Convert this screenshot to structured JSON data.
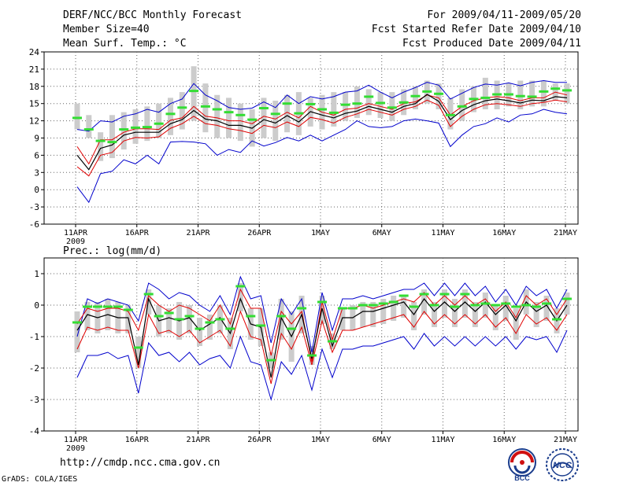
{
  "header": {
    "line1_left": "DERF/NCC/BCC Monthly Forecast",
    "line2_left": "Member Size=40",
    "line3_left": "Mean Surf. Temp.: °C",
    "line1_right": "For 2009/04/11-2009/05/20",
    "line2_right": "Fcst Started Refer Date 2009/04/10",
    "line3_right": "Fcst Produced Date 2009/04/11"
  },
  "footer": {
    "url": "http://cmdp.ncc.cma.gov.cn",
    "grads": "GrADS: COLA/IGES",
    "logo_bcc": "BCC",
    "logo_ncc": "NCC"
  },
  "colors": {
    "mean": "#000000",
    "spread": "#e00000",
    "extreme": "#0000cc",
    "box": "#cccccc",
    "climate": "#33dd33",
    "grid": "#666666"
  },
  "chart_data": [
    {
      "type": "line",
      "title": "Mean Surf. Temp.: °C",
      "ylabel": "",
      "ylim": [
        -6,
        24
      ],
      "yticks": [
        -6,
        -3,
        0,
        3,
        6,
        9,
        12,
        15,
        18,
        21,
        24
      ],
      "ytick_labels": [
        "-6",
        "-3",
        "0",
        "3",
        "6",
        "9",
        "12",
        "15",
        "18",
        "21",
        "24"
      ],
      "xtick_labels": [
        "11APR",
        "16APR",
        "21APR",
        "26APR",
        "1MAY",
        "6MAY",
        "11MAY",
        "16MAY",
        "21MAY"
      ],
      "xtick_sub": "2009",
      "series": [
        {
          "name": "max",
          "values": [
            10.5,
            10.2,
            12,
            11.8,
            12.8,
            13.2,
            14,
            13.5,
            15,
            15.8,
            18.5,
            16.5,
            15.5,
            14.3,
            14,
            14.2,
            15.3,
            14.3,
            16.5,
            15,
            16.2,
            15.8,
            16.2,
            17,
            17.2,
            18.2,
            17,
            16,
            17,
            17.8,
            18.7,
            18.2,
            15.8,
            16.8,
            17.8,
            18.4,
            18.2,
            18.6,
            18.1,
            18.7,
            19,
            18.7,
            18.7
          ]
        },
        {
          "name": "upper",
          "values": [
            7.5,
            4.5,
            8.7,
            8.7,
            10,
            10.6,
            10.6,
            10.5,
            12.1,
            12.5,
            14.5,
            12.8,
            12.5,
            12,
            12,
            11.5,
            12.8,
            12.3,
            13.5,
            12.5,
            14.5,
            13.5,
            13,
            14,
            14.2,
            15,
            14.5,
            14,
            15,
            15.3,
            16.5,
            16,
            13,
            14.5,
            15.5,
            16,
            16.2,
            16,
            15.5,
            16,
            16,
            17,
            16.5
          ]
        },
        {
          "name": "mean",
          "values": [
            6,
            3.5,
            7.2,
            7.8,
            9.5,
            10,
            10,
            10,
            11.5,
            12.2,
            13.8,
            12.3,
            12,
            11.2,
            11.2,
            10.7,
            12.2,
            11.6,
            12.9,
            11.8,
            13.6,
            13,
            12.5,
            13.3,
            13.7,
            14.5,
            14,
            13.5,
            14.5,
            15,
            16.6,
            15.4,
            12.2,
            13.8,
            14.8,
            15.5,
            15.8,
            15.5,
            15.1,
            15.6,
            15.5,
            16.2,
            16
          ]
        },
        {
          "name": "lower",
          "values": [
            4,
            2.4,
            6,
            6.5,
            8.5,
            9.1,
            9,
            9.2,
            10.7,
            11.5,
            12.8,
            11.5,
            11.2,
            10.6,
            10.3,
            9.8,
            11.2,
            10.8,
            11.8,
            11,
            12.6,
            12.2,
            11.6,
            12.6,
            13.2,
            14,
            13.5,
            13,
            14,
            14.5,
            15.6,
            14.7,
            11,
            12.8,
            14,
            14.8,
            15,
            14.8,
            14.5,
            15,
            15.2,
            15.6,
            15.3
          ]
        },
        {
          "name": "min",
          "values": [
            0.5,
            -2.2,
            2.8,
            3.2,
            5.2,
            4.5,
            6,
            4.5,
            8.3,
            8.4,
            8.3,
            8,
            6,
            7,
            6.5,
            8.5,
            7.6,
            8.2,
            9.1,
            8.5,
            9.5,
            8.5,
            9.5,
            10.5,
            12,
            11,
            10.8,
            11,
            12,
            12.3,
            12,
            11.6,
            7.5,
            9.5,
            11,
            11.5,
            12.5,
            11.8,
            13,
            13.2,
            14,
            13.5,
            13.2
          ]
        },
        {
          "name": "box_top",
          "values": [
            15,
            13,
            10,
            13,
            13.5,
            14,
            14.5,
            15,
            16,
            17,
            21.5,
            18.5,
            16.5,
            16,
            15,
            14,
            16,
            15.5,
            16.5,
            17,
            16,
            16.5,
            17,
            17,
            18,
            17.5,
            17,
            17,
            17.5,
            18,
            19,
            18.5,
            16,
            17.5,
            18,
            19.5,
            19,
            18.5,
            19,
            19,
            19,
            18.5,
            18.5
          ]
        },
        {
          "name": "box_bottom",
          "values": [
            10.5,
            9,
            5,
            5.5,
            7,
            8,
            8.5,
            9,
            9.5,
            10.5,
            12,
            10,
            9,
            9,
            8.5,
            7.5,
            9,
            8.5,
            10,
            9.5,
            11,
            10.5,
            11,
            12,
            12.5,
            13,
            12.5,
            12,
            13,
            14,
            15,
            14,
            10.5,
            12,
            13.5,
            14,
            14,
            14.5,
            14,
            14.5,
            14.5,
            15.5,
            15
          ]
        },
        {
          "name": "climate",
          "values": [
            12.5,
            10.5,
            8.5,
            8.3,
            10.5,
            10.8,
            10.9,
            11.5,
            13.2,
            14.3,
            17.2,
            14.5,
            14,
            13.5,
            13,
            12.2,
            14.2,
            13.2,
            15,
            13.3,
            14.9,
            14,
            13.4,
            14.8,
            15,
            16.2,
            15.1,
            14.3,
            15.2,
            16.3,
            17.1,
            16.7,
            13,
            14.5,
            15.8,
            16,
            16.6,
            16.6,
            16.3,
            16.2,
            17.1,
            17.6,
            17.3
          ]
        }
      ]
    },
    {
      "type": "line",
      "title": "Prec.: log(mm/d)",
      "ylabel": "",
      "ylim": [
        -4,
        1.5
      ],
      "yticks": [
        -4,
        -3,
        -2,
        -1,
        0,
        1
      ],
      "ytick_labels": [
        "-4",
        "-3",
        "-2",
        "-1",
        "0",
        "1"
      ],
      "xtick_labels": [
        "11APR",
        "16APR",
        "21APR",
        "26APR",
        "1MAY",
        "6MAY",
        "11MAY",
        "16MAY",
        "21MAY"
      ],
      "xtick_sub": "2009",
      "series": [
        {
          "name": "max",
          "values": [
            -1,
            0.2,
            0.05,
            0.2,
            0.1,
            0,
            -0.5,
            0.7,
            0.5,
            0.2,
            0.4,
            0.3,
            0,
            -0.2,
            0.3,
            -0.3,
            0.9,
            0.2,
            0.3,
            -1.2,
            0.2,
            -0.3,
            0.2,
            -1.5,
            0.4,
            -0.8,
            0.2,
            0.2,
            0.3,
            0.2,
            0.3,
            0.4,
            0.5,
            0.5,
            0.7,
            0.3,
            0.7,
            0.3,
            0.7,
            0.3,
            0.6,
            0.1,
            0.5,
            0,
            0.6,
            0.3,
            0.5,
            -0.1,
            0.5
          ]
        },
        {
          "name": "upper",
          "values": [
            -0.6,
            -0.1,
            -0.2,
            -0.1,
            -0.1,
            -0.2,
            -0.8,
            0.3,
            0,
            -0.2,
            0,
            -0.1,
            -0.3,
            -0.5,
            0,
            -0.6,
            0.5,
            -0.1,
            -0.1,
            -1.6,
            -0.2,
            -0.6,
            -0.2,
            -1.8,
            0.1,
            -1.1,
            -0.1,
            -0.1,
            0,
            -0.1,
            0,
            0.1,
            0.2,
            0.1,
            0.4,
            0,
            0.3,
            0,
            0.3,
            0,
            0.2,
            -0.2,
            0.1,
            -0.4,
            0.3,
            0,
            0.2,
            -0.3,
            0.2
          ]
        },
        {
          "name": "mean",
          "values": [
            -0.8,
            -0.3,
            -0.4,
            -0.3,
            -0.4,
            -0.4,
            -1.9,
            0.2,
            -0.5,
            -0.4,
            -0.5,
            -0.4,
            -0.8,
            -0.6,
            -0.4,
            -0.9,
            0.2,
            -0.6,
            -0.7,
            -2.3,
            -0.4,
            -1,
            -0.3,
            -1.7,
            -0.1,
            -1.3,
            -0.4,
            -0.4,
            -0.2,
            -0.2,
            -0.1,
            0,
            0.1,
            -0.3,
            0.2,
            -0.2,
            0.1,
            -0.2,
            0.1,
            -0.2,
            0.1,
            -0.3,
            0,
            -0.5,
            0.1,
            -0.2,
            0,
            -0.5,
            0
          ]
        },
        {
          "name": "lower",
          "values": [
            -1.4,
            -0.7,
            -0.8,
            -0.7,
            -0.8,
            -0.8,
            -2,
            -0.3,
            -0.9,
            -0.8,
            -1,
            -0.8,
            -1.2,
            -1,
            -0.8,
            -1.3,
            -0.2,
            -1,
            -1.1,
            -2.5,
            -0.9,
            -1.4,
            -0.7,
            -1.9,
            -0.5,
            -1.5,
            -0.8,
            -0.8,
            -0.7,
            -0.6,
            -0.5,
            -0.4,
            -0.3,
            -0.7,
            -0.2,
            -0.6,
            -0.3,
            -0.6,
            -0.3,
            -0.6,
            -0.3,
            -0.7,
            -0.4,
            -0.9,
            -0.3,
            -0.6,
            -0.4,
            -0.8,
            -0.3
          ]
        },
        {
          "name": "min",
          "values": [
            -2.3,
            -1.6,
            -1.6,
            -1.5,
            -1.7,
            -1.6,
            -2.8,
            -1.2,
            -1.6,
            -1.5,
            -1.8,
            -1.5,
            -1.9,
            -1.7,
            -1.6,
            -2,
            -1,
            -1.8,
            -1.9,
            -3,
            -1.8,
            -2.2,
            -1.6,
            -2.7,
            -1.4,
            -2.3,
            -1.4,
            -1.4,
            -1.3,
            -1.3,
            -1.2,
            -1.1,
            -1,
            -1.4,
            -0.9,
            -1.3,
            -1,
            -1.3,
            -1,
            -1.3,
            -1,
            -1.3,
            -1,
            -1.4,
            -1,
            -1.1,
            -1,
            -1.5,
            -0.8
          ]
        },
        {
          "name": "box_top",
          "values": [
            -0.2,
            0.1,
            0.1,
            0.2,
            0.1,
            0,
            -1,
            0.5,
            0,
            -0.1,
            0.1,
            0,
            -0.4,
            -0.3,
            0,
            -0.4,
            0.7,
            -0.1,
            -0.1,
            -1.5,
            0.2,
            -0.2,
            0.3,
            -1.3,
            0.3,
            -0.9,
            -0.1,
            0,
            0.1,
            0.1,
            0.2,
            0.3,
            0.3,
            0.1,
            0.5,
            0.1,
            0.5,
            0.2,
            0.5,
            0.1,
            0.4,
            0,
            0.3,
            -0.1,
            0.5,
            0.1,
            0.3,
            -0.1,
            0.4
          ]
        },
        {
          "name": "box_bottom",
          "values": [
            -1.5,
            -0.8,
            -0.9,
            -0.8,
            -0.9,
            -0.9,
            -2,
            -0.3,
            -1,
            -0.9,
            -1.1,
            -0.9,
            -1.3,
            -1.1,
            -0.9,
            -1.4,
            -0.2,
            -1.1,
            -1.3,
            -2,
            -1.1,
            -1.8,
            -0.9,
            -1.9,
            -0.6,
            -1.4,
            -0.8,
            -0.8,
            -0.7,
            -0.7,
            -0.6,
            -0.5,
            -0.4,
            -0.8,
            -0.3,
            -0.7,
            -0.4,
            -0.7,
            -0.4,
            -0.7,
            -0.4,
            -0.8,
            -0.5,
            -1.1,
            -0.3,
            -0.7,
            -0.5,
            -0.9,
            -0.3
          ]
        },
        {
          "name": "climate",
          "values": [
            -0.55,
            -0.05,
            -0.05,
            -0.05,
            -0.05,
            -0.15,
            -1.35,
            0.35,
            -0.35,
            -0.25,
            -0.45,
            -0.35,
            -0.75,
            -0.55,
            -0.45,
            -0.75,
            0.6,
            -0.35,
            -0.65,
            -1.75,
            -0.35,
            -0.75,
            -0.1,
            -1.6,
            0.1,
            -1.15,
            -0.1,
            -0.1,
            0,
            0,
            0.05,
            0.1,
            0.3,
            -0.05,
            0.35,
            0,
            0.35,
            -0.05,
            0.35,
            0,
            0.05,
            0,
            0.05,
            -0.05,
            0,
            -0.05,
            0.05,
            -0.45,
            0.2
          ]
        }
      ]
    }
  ]
}
